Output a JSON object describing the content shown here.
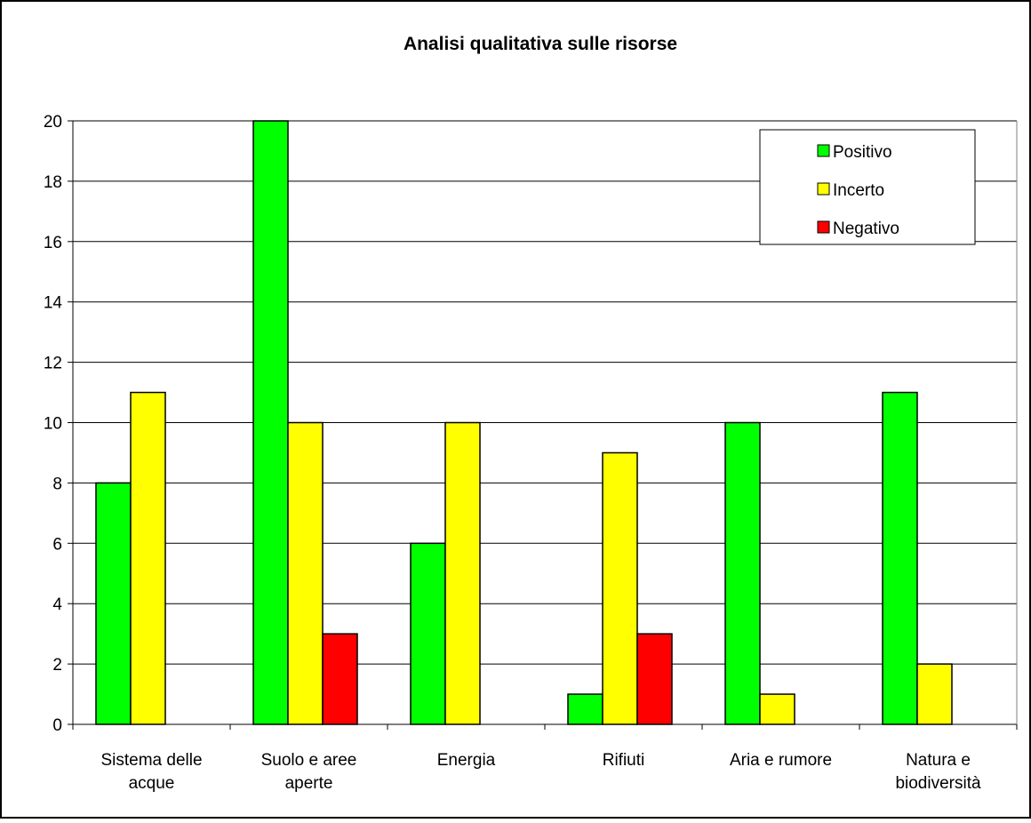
{
  "chart_data": {
    "type": "bar",
    "title": "Analisi qualitativa sulle risorse",
    "xlabel": "",
    "ylabel": "",
    "categories": [
      [
        "Sistema delle",
        "acque"
      ],
      [
        "Suolo e aree",
        "aperte"
      ],
      [
        "Energia"
      ],
      [
        "Rifiuti"
      ],
      [
        "Aria e rumore"
      ],
      [
        "Natura e",
        "biodiversità"
      ]
    ],
    "series": [
      {
        "name": "Positivo",
        "color": "#00ff00",
        "values": [
          8,
          20,
          6,
          1,
          10,
          11
        ]
      },
      {
        "name": "Incerto",
        "color": "#ffff00",
        "values": [
          11,
          10,
          10,
          9,
          1,
          2
        ]
      },
      {
        "name": "Negativo",
        "color": "#ff0000",
        "values": [
          0,
          3,
          0,
          3,
          0,
          0
        ]
      }
    ],
    "ylim": [
      0,
      20
    ],
    "yticks": [
      0,
      2,
      4,
      6,
      8,
      10,
      12,
      14,
      16,
      18,
      20
    ],
    "grid": true,
    "legend_position": "top-right"
  }
}
